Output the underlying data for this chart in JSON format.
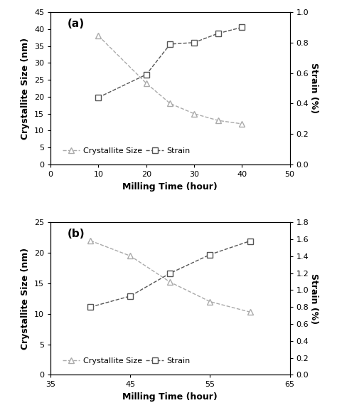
{
  "a": {
    "x_size": [
      10,
      20,
      25,
      30,
      35,
      40
    ],
    "y_size": [
      38,
      24,
      18,
      15,
      13,
      12
    ],
    "x_strain": [
      10,
      20,
      25,
      30,
      35,
      40
    ],
    "y_strain": [
      0.44,
      0.59,
      0.79,
      0.8,
      0.86,
      0.9
    ],
    "xlim": [
      0,
      50
    ],
    "xticks": [
      0,
      10,
      20,
      30,
      40,
      50
    ],
    "ylim_left": [
      0,
      45
    ],
    "yticks_left": [
      0,
      5,
      10,
      15,
      20,
      25,
      30,
      35,
      40,
      45
    ],
    "ylim_right": [
      0,
      1.0
    ],
    "yticks_right": [
      0,
      0.2,
      0.4,
      0.6,
      0.8,
      1.0
    ],
    "xlabel": "Milling Time (hour)",
    "ylabel_left": "Crystallite Size (nm)",
    "ylabel_right": "Strain (%)",
    "panel_label": "(a)",
    "legend_size_label": "Crystallite Size",
    "legend_strain_label": "Strain"
  },
  "b": {
    "x_size": [
      40,
      45,
      50,
      55,
      60
    ],
    "y_size": [
      22,
      19.5,
      15.2,
      12,
      10.3
    ],
    "x_strain": [
      40,
      45,
      50,
      55,
      60
    ],
    "y_strain": [
      0.8,
      0.93,
      1.2,
      1.42,
      1.58
    ],
    "xlim": [
      35,
      65
    ],
    "xticks": [
      35,
      45,
      55,
      65
    ],
    "ylim_left": [
      0,
      25
    ],
    "yticks_left": [
      0,
      5,
      10,
      15,
      20,
      25
    ],
    "ylim_right": [
      0,
      1.8
    ],
    "yticks_right": [
      0,
      0.2,
      0.4,
      0.6,
      0.8,
      1.0,
      1.2,
      1.4,
      1.6,
      1.8
    ],
    "xlabel": "Milling Time (hour)",
    "ylabel_left": "Crystallite Size (nm)",
    "ylabel_right": "Strain (%)",
    "panel_label": "(b)",
    "legend_size_label": "Crystallite Size",
    "legend_strain_label": "Strain"
  },
  "size_line_color": "#aaaaaa",
  "strain_line_color": "#555555",
  "marker_color": "#555555",
  "size_marker_color": "#aaaaaa",
  "marker_size_triangle": 6,
  "marker_size_square": 6,
  "fontsize_axis_label": 9,
  "fontsize_tick": 8,
  "fontsize_legend": 8,
  "fontsize_panel_label": 11
}
